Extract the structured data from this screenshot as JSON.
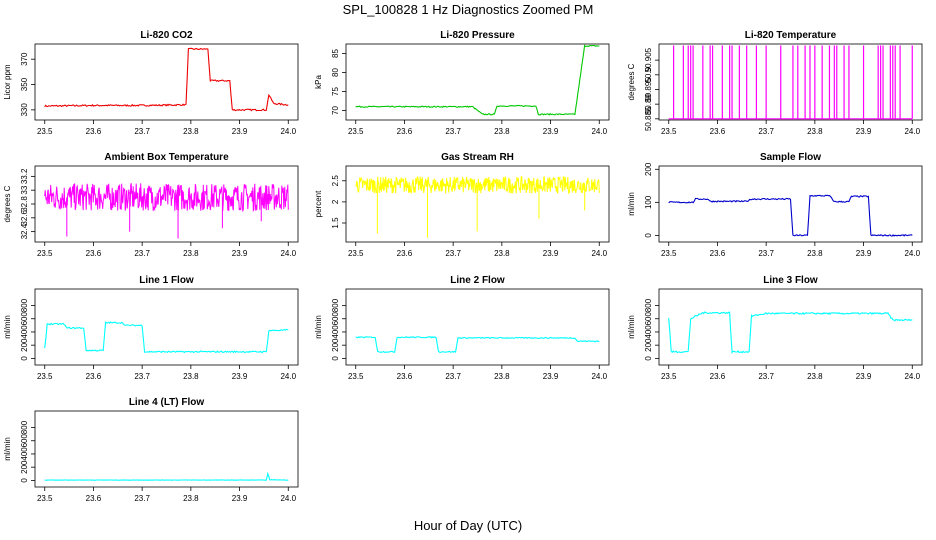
{
  "figure": {
    "title": "SPL_100828  1 Hz Diagnostics Zoomed PM",
    "xlabel": "Hour of Day (UTC)"
  },
  "chart_data": [
    {
      "type": "line",
      "title": "Li-820 CO2",
      "ylabel": "Licor ppm",
      "color": "#ee0000",
      "xlim": [
        23.48,
        24.02
      ],
      "ylim": [
        322,
        382
      ],
      "xticks": [
        "23.5",
        "23.6",
        "23.7",
        "23.8",
        "23.9",
        "24.0"
      ],
      "yticks": [
        330,
        350,
        370
      ],
      "noise": 0.6,
      "x": [
        23.5,
        23.6,
        23.7,
        23.79,
        23.795,
        23.835,
        23.84,
        23.88,
        23.885,
        23.955,
        23.96,
        23.97,
        24.0
      ],
      "y": [
        333,
        333.5,
        333.5,
        334,
        378,
        378,
        353,
        353,
        330,
        330,
        342,
        335,
        334
      ]
    },
    {
      "type": "line",
      "title": "Li-820 Pressure",
      "ylabel": "kPa",
      "color": "#00c800",
      "xlim": [
        23.48,
        24.02
      ],
      "ylim": [
        67.5,
        87.5
      ],
      "xticks": [
        "23.5",
        "23.6",
        "23.7",
        "23.8",
        "23.9",
        "24.0"
      ],
      "yticks": [
        70,
        75,
        80,
        85
      ],
      "noise": 0.15,
      "x": [
        23.5,
        23.74,
        23.76,
        23.785,
        23.79,
        23.87,
        23.875,
        23.95,
        23.96,
        23.97,
        24.0
      ],
      "y": [
        71,
        71,
        69,
        69,
        71.2,
        71.2,
        69,
        69,
        78,
        87,
        87
      ]
    },
    {
      "type": "spikes",
      "title": "Li-820 Temperature",
      "ylabel": "degrees C",
      "color": "#ff00ff",
      "xlim": [
        23.48,
        24.02
      ],
      "ylim": [
        50.8846,
        50.9105
      ],
      "xticks": [
        "23.5",
        "23.6",
        "23.7",
        "23.8",
        "23.9",
        "24.0"
      ],
      "yticks": [
        50.885,
        50.89,
        50.895,
        50.9,
        50.905
      ],
      "base": 50.885,
      "peak": 50.91,
      "x": [
        23.51,
        23.53,
        23.54,
        23.545,
        23.55,
        23.57,
        23.585,
        23.59,
        23.61,
        23.625,
        23.63,
        23.645,
        23.66,
        23.68,
        23.7,
        23.73,
        23.755,
        23.765,
        23.78,
        23.79,
        23.8,
        23.815,
        23.83,
        23.84,
        23.845,
        23.86,
        23.87,
        23.9,
        23.93,
        23.935,
        23.94,
        23.955,
        23.96,
        23.965,
        23.975,
        24.0
      ]
    },
    {
      "type": "noise",
      "title": "Ambient Box Temperature",
      "ylabel": "degrees C",
      "color": "#ff00ff",
      "xlim": [
        23.48,
        24.02
      ],
      "ylim": [
        32.25,
        33.35
      ],
      "xticks": [
        "23.5",
        "23.6",
        "23.7",
        "23.8",
        "23.9",
        "24.0"
      ],
      "yticks": [
        32.4,
        32.6,
        32.8,
        33.0,
        33.2
      ],
      "xrange": [
        23.5,
        24.0
      ],
      "center": 32.9,
      "spread": 0.2,
      "dips": [
        32.33,
        32.4,
        32.3,
        32.45,
        32.55
      ]
    },
    {
      "type": "noise",
      "title": "Gas Stream RH",
      "ylabel": "percent",
      "color": "#ffff00",
      "xlim": [
        23.48,
        24.02
      ],
      "ylim": [
        1.05,
        2.85
      ],
      "xticks": [
        "23.5",
        "23.6",
        "23.7",
        "23.8",
        "23.9",
        "24.0"
      ],
      "yticks": [
        1.5,
        2.0,
        2.5
      ],
      "xrange": [
        23.5,
        24.0
      ],
      "center": 2.4,
      "spread": 0.2,
      "dips": [
        1.25,
        1.15,
        1.3,
        1.6,
        1.8
      ]
    },
    {
      "type": "line",
      "title": "Sample Flow",
      "ylabel": "ml/min",
      "color": "#0000cc",
      "xlim": [
        23.48,
        24.02
      ],
      "ylim": [
        -20,
        210
      ],
      "xticks": [
        "23.5",
        "23.6",
        "23.7",
        "23.8",
        "23.9",
        "24.0"
      ],
      "yticks": [
        0,
        100,
        200
      ],
      "noise": 2,
      "x": [
        23.5,
        23.55,
        23.555,
        23.58,
        23.585,
        23.66,
        23.67,
        23.75,
        23.755,
        23.785,
        23.79,
        23.83,
        23.84,
        23.87,
        23.875,
        23.91,
        23.915,
        24.0
      ],
      "y": [
        100,
        100,
        110,
        110,
        103,
        103,
        110,
        110,
        0,
        0,
        120,
        120,
        102,
        102,
        118,
        118,
        0,
        0
      ]
    },
    {
      "type": "line",
      "title": "Line 1 Flow",
      "ylabel": "ml/min",
      "color": "#00ffff",
      "xlim": [
        23.48,
        24.02
      ],
      "ylim": [
        -100,
        1050
      ],
      "xticks": [
        "23.5",
        "23.6",
        "23.7",
        "23.8",
        "23.9",
        "24.0"
      ],
      "yticks": [
        0,
        200,
        400,
        600,
        800
      ],
      "noise": 10,
      "x": [
        23.5,
        23.505,
        23.54,
        23.545,
        23.58,
        23.585,
        23.62,
        23.625,
        23.66,
        23.665,
        23.7,
        23.705,
        23.955,
        23.96,
        24.0
      ],
      "y": [
        150,
        520,
        520,
        460,
        460,
        120,
        120,
        540,
        540,
        500,
        500,
        100,
        100,
        420,
        430
      ]
    },
    {
      "type": "line",
      "title": "Line 2 Flow",
      "ylabel": "ml/min",
      "color": "#00ffff",
      "xlim": [
        23.48,
        24.02
      ],
      "ylim": [
        -100,
        1050
      ],
      "xticks": [
        "23.5",
        "23.6",
        "23.7",
        "23.8",
        "23.9",
        "24.0"
      ],
      "yticks": [
        0,
        200,
        400,
        600,
        800
      ],
      "noise": 8,
      "x": [
        23.5,
        23.54,
        23.545,
        23.58,
        23.585,
        23.665,
        23.67,
        23.705,
        23.71,
        23.95,
        23.955,
        24.0
      ],
      "y": [
        320,
        320,
        100,
        100,
        320,
        320,
        100,
        100,
        310,
        310,
        260,
        260
      ]
    },
    {
      "type": "line",
      "title": "Line 3 Flow",
      "ylabel": "ml/min",
      "color": "#00ffff",
      "xlim": [
        23.48,
        24.02
      ],
      "ylim": [
        -100,
        1050
      ],
      "xticks": [
        "23.5",
        "23.6",
        "23.7",
        "23.8",
        "23.9",
        "24.0"
      ],
      "yticks": [
        0,
        200,
        400,
        600,
        800
      ],
      "noise": 12,
      "x": [
        23.5,
        23.505,
        23.54,
        23.545,
        23.57,
        23.625,
        23.63,
        23.665,
        23.67,
        23.7,
        23.95,
        23.96,
        24.0
      ],
      "y": [
        620,
        100,
        100,
        600,
        690,
        690,
        100,
        100,
        640,
        680,
        680,
        580,
        580
      ]
    },
    {
      "type": "line",
      "title": "Line 4 (LT) Flow",
      "ylabel": "ml/min",
      "color": "#00ffff",
      "xlim": [
        23.48,
        24.02
      ],
      "ylim": [
        -100,
        1050
      ],
      "xticks": [
        "23.5",
        "23.6",
        "23.7",
        "23.8",
        "23.9",
        "24.0"
      ],
      "yticks": [
        0,
        200,
        400,
        600,
        800
      ],
      "noise": 3,
      "x": [
        23.5,
        23.955,
        23.958,
        23.962,
        24.0
      ],
      "y": [
        5,
        5,
        100,
        10,
        5
      ]
    }
  ]
}
